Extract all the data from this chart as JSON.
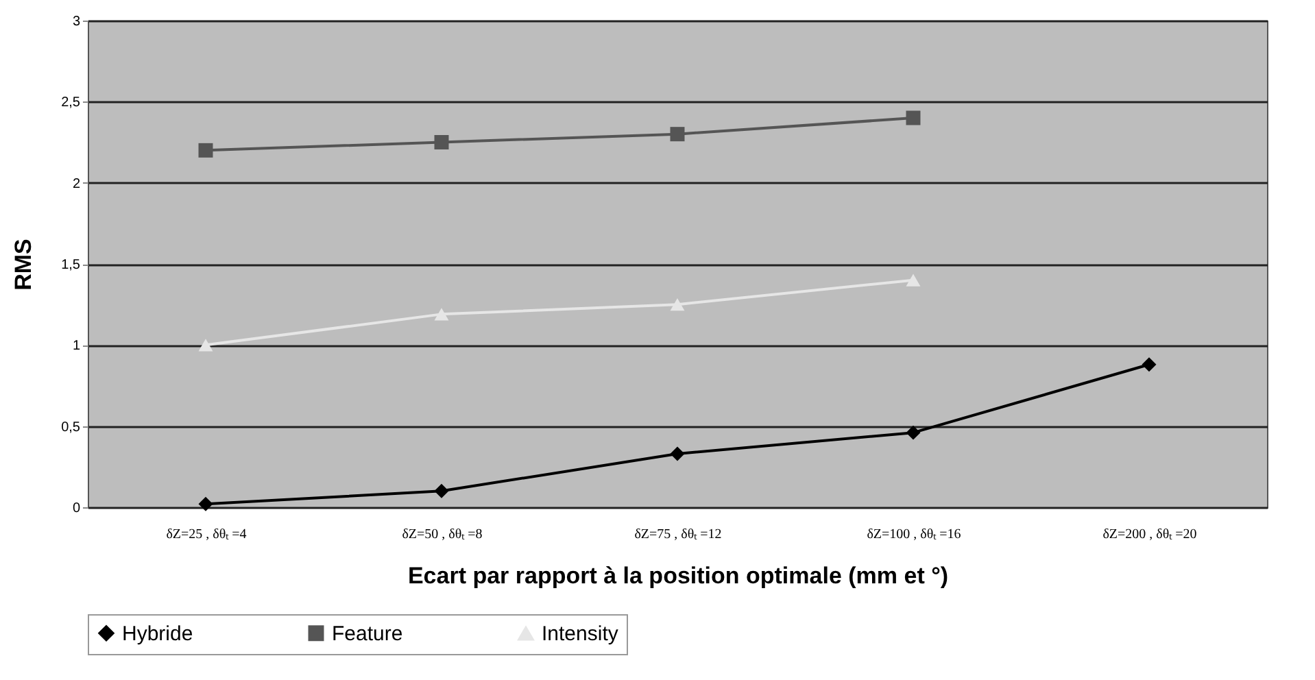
{
  "chart_data": {
    "type": "line",
    "xlabel": "Ecart par rapport à la position optimale (mm et °)",
    "ylabel": "RMS",
    "categories": [
      "δZ=25 , δθₜ =4",
      "δZ=50 , δθₜ =8",
      "δZ=75 , δθₜ =12",
      "δZ=100 , δθₜ =16",
      "δZ=200 , δθₜ =20"
    ],
    "series": [
      {
        "name": "Hybride",
        "color": "#000000",
        "marker": "diamond",
        "values": [
          0.02,
          0.1,
          0.33,
          0.46,
          0.88
        ]
      },
      {
        "name": "Feature",
        "color": "#555555",
        "marker": "square",
        "values": [
          2.2,
          2.25,
          2.3,
          2.4,
          null
        ]
      },
      {
        "name": "Intensity",
        "color": "#e6e6e6",
        "marker": "triangle",
        "values": [
          1.0,
          1.19,
          1.25,
          1.4,
          null
        ]
      }
    ],
    "ylim": [
      0,
      3
    ],
    "yticks": [
      0,
      {
        "value": 0.5,
        "label": "0,5"
      },
      1,
      {
        "value": 1.5,
        "label": "1,5"
      },
      2,
      {
        "value": 2.5,
        "label": "2,5"
      },
      3
    ],
    "grid": "y",
    "legend": "bottom"
  }
}
